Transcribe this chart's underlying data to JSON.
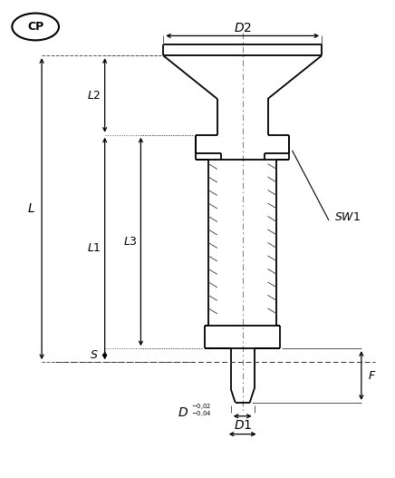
{
  "bg_color": "#ffffff",
  "line_color": "#000000",
  "fig_width": 4.36,
  "fig_height": 5.27,
  "dpi": 100
}
